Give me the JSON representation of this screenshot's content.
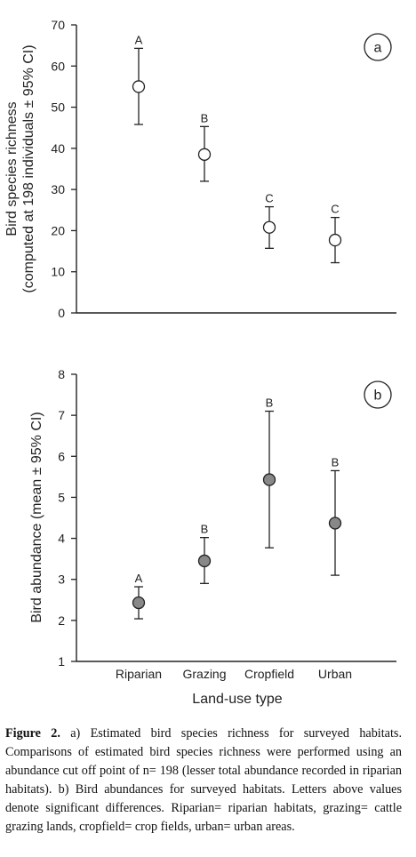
{
  "chart_data": [
    {
      "type": "scatter",
      "panel_label": "a",
      "ylabel_line1": "Bird species richness",
      "ylabel_line2": "(computed at 198 individuals ± 95% CI)",
      "ylim": [
        0,
        70
      ],
      "yticks": [
        0,
        10,
        20,
        30,
        40,
        50,
        60,
        70
      ],
      "categories": [
        "Riparian",
        "Grazing",
        "Cropfield",
        "Urban"
      ],
      "marker_fill": "#ffffff",
      "points": [
        {
          "category": "Riparian",
          "value": 55,
          "ci_low": 45.8,
          "ci_high": 64.3,
          "letter": "A"
        },
        {
          "category": "Grazing",
          "value": 38.5,
          "ci_low": 32,
          "ci_high": 45.3,
          "letter": "B"
        },
        {
          "category": "Cropfield",
          "value": 20.8,
          "ci_low": 15.7,
          "ci_high": 25.8,
          "letter": "C"
        },
        {
          "category": "Urban",
          "value": 17.7,
          "ci_low": 12.2,
          "ci_high": 23.2,
          "letter": "C"
        }
      ]
    },
    {
      "type": "scatter",
      "panel_label": "b",
      "ylabel_line1": "Bird abundance (mean ± 95% CI)",
      "ylim": [
        1,
        8
      ],
      "yticks": [
        1,
        2,
        3,
        4,
        5,
        6,
        7,
        8
      ],
      "categories": [
        "Riparian",
        "Grazing",
        "Cropfield",
        "Urban"
      ],
      "xlabel": "Land-use type",
      "marker_fill": "#888888",
      "points": [
        {
          "category": "Riparian",
          "value": 2.43,
          "ci_low": 2.04,
          "ci_high": 2.82,
          "letter": "A"
        },
        {
          "category": "Grazing",
          "value": 3.45,
          "ci_low": 2.9,
          "ci_high": 4.02,
          "letter": "B"
        },
        {
          "category": "Cropfield",
          "value": 5.43,
          "ci_low": 3.77,
          "ci_high": 7.1,
          "letter": "B"
        },
        {
          "category": "Urban",
          "value": 4.37,
          "ci_low": 3.1,
          "ci_high": 5.65,
          "letter": "B"
        }
      ]
    }
  ],
  "caption": {
    "label": "Figure 2.",
    "text": " a) Estimated bird species richness for surveyed habitats. Comparisons of estimated bird species richness were performed using an abundance cut off point of n= 198 (lesser total abundance recorded in riparian habitats). b) Bird abundances for surveyed habitats. Letters above values denote significant differences. Riparian= riparian habitats, grazing= cattle grazing lands, cropfield= crop fields, urban= urban areas."
  }
}
